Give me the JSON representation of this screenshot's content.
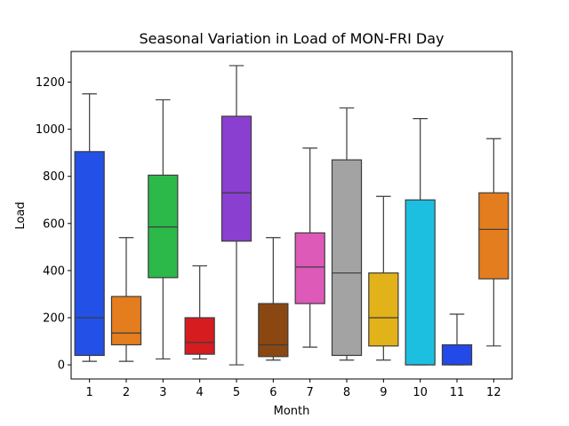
{
  "chart_data": {
    "type": "box",
    "title": "Seasonal Variation in Load of MON-FRI Day",
    "xlabel": "Month",
    "ylabel": "Load",
    "ylim": [
      -60,
      1330
    ],
    "yticks": [
      0,
      200,
      400,
      600,
      800,
      1000,
      1200
    ],
    "categories": [
      "1",
      "2",
      "3",
      "4",
      "5",
      "6",
      "7",
      "8",
      "9",
      "10",
      "11",
      "12"
    ],
    "colors": [
      "#2350e6",
      "#e47d1e",
      "#2db84a",
      "#d61c1f",
      "#8b3fd1",
      "#8b4712",
      "#dd5ab8",
      "#a3a3a3",
      "#e2b21a",
      "#1dbfe0",
      "#2349e8",
      "#e47d1e"
    ],
    "boxes": [
      {
        "month": "1",
        "whisker_low": 15,
        "q1": 40,
        "median": 200,
        "q3": 905,
        "whisker_high": 1150
      },
      {
        "month": "2",
        "whisker_low": 15,
        "q1": 85,
        "median": 135,
        "q3": 290,
        "whisker_high": 540
      },
      {
        "month": "3",
        "whisker_low": 25,
        "q1": 370,
        "median": 585,
        "q3": 805,
        "whisker_high": 1125
      },
      {
        "month": "4",
        "whisker_low": 25,
        "q1": 45,
        "median": 95,
        "q3": 200,
        "whisker_high": 420
      },
      {
        "month": "5",
        "whisker_low": 0,
        "q1": 525,
        "median": 730,
        "q3": 1055,
        "whisker_high": 1270
      },
      {
        "month": "6",
        "whisker_low": 20,
        "q1": 35,
        "median": 85,
        "q3": 260,
        "whisker_high": 540
      },
      {
        "month": "7",
        "whisker_low": 75,
        "q1": 260,
        "median": 415,
        "q3": 560,
        "whisker_high": 920
      },
      {
        "month": "8",
        "whisker_low": 20,
        "q1": 40,
        "median": 390,
        "q3": 870,
        "whisker_high": 1090
      },
      {
        "month": "9",
        "whisker_low": 20,
        "q1": 80,
        "median": 200,
        "q3": 390,
        "whisker_high": 715
      },
      {
        "month": "10",
        "whisker_low": 0,
        "q1": 0,
        "median": 0,
        "q3": 700,
        "whisker_high": 1045
      },
      {
        "month": "11",
        "whisker_low": 0,
        "q1": 0,
        "median": 0,
        "q3": 85,
        "whisker_high": 215
      },
      {
        "month": "12",
        "whisker_low": 80,
        "q1": 365,
        "median": 575,
        "q3": 730,
        "whisker_high": 960
      }
    ]
  }
}
